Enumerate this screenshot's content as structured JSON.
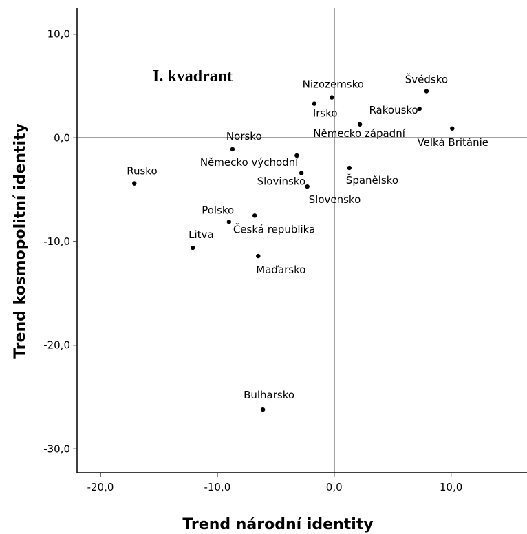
{
  "chart_data": {
    "type": "scatter",
    "xlabel": "Trend národní identity",
    "ylabel": "Trend kosmopolitní identity",
    "xlim": [
      -22,
      16.5
    ],
    "ylim": [
      -32.3,
      12.5
    ],
    "x_ticks": [
      {
        "value": -20,
        "label": "-20,0"
      },
      {
        "value": -10,
        "label": "-10,0"
      },
      {
        "value": 0,
        "label": "0,0"
      },
      {
        "value": 10,
        "label": "10,0"
      }
    ],
    "y_ticks": [
      {
        "value": 10,
        "label": "10,0"
      },
      {
        "value": 0,
        "label": "0,0"
      },
      {
        "value": -10,
        "label": "-10,0"
      },
      {
        "value": -20,
        "label": "-20,0"
      },
      {
        "value": -30,
        "label": "-30,0"
      }
    ],
    "reference_lines": {
      "x": 0,
      "y": 0
    },
    "annotation": "I. kvadrant",
    "points": [
      {
        "label": "Švédsko",
        "x": 7.9,
        "y": 4.5
      },
      {
        "label": "Nizozemsko",
        "x": -0.2,
        "y": 3.9
      },
      {
        "label": "Irsko",
        "x": -1.7,
        "y": 3.3
      },
      {
        "label": "Rakousko",
        "x": 7.3,
        "y": 2.8
      },
      {
        "label": "Německo západní",
        "x": 2.2,
        "y": 1.3
      },
      {
        "label": "Velká Británie",
        "x": 10.1,
        "y": 0.9
      },
      {
        "label": "Norsko",
        "x": -8.7,
        "y": -1.1
      },
      {
        "label": "Německo východní",
        "x": -3.2,
        "y": -1.7
      },
      {
        "label": "Rusko",
        "x": -17.1,
        "y": -4.4
      },
      {
        "label": "Španělsko",
        "x": 1.3,
        "y": -2.9
      },
      {
        "label": "Slovinsko",
        "x": -2.8,
        "y": -3.4
      },
      {
        "label": "Slovensko",
        "x": -2.3,
        "y": -4.7
      },
      {
        "label": "Polsko",
        "x": -6.8,
        "y": -7.5
      },
      {
        "label": "Česká republika",
        "x": -9.0,
        "y": -8.1
      },
      {
        "label": "Litva",
        "x": -12.1,
        "y": -10.6
      },
      {
        "label": "Maďarsko",
        "x": -6.5,
        "y": -11.4
      },
      {
        "label": "Bulharsko",
        "x": -6.1,
        "y": -26.2
      }
    ]
  }
}
